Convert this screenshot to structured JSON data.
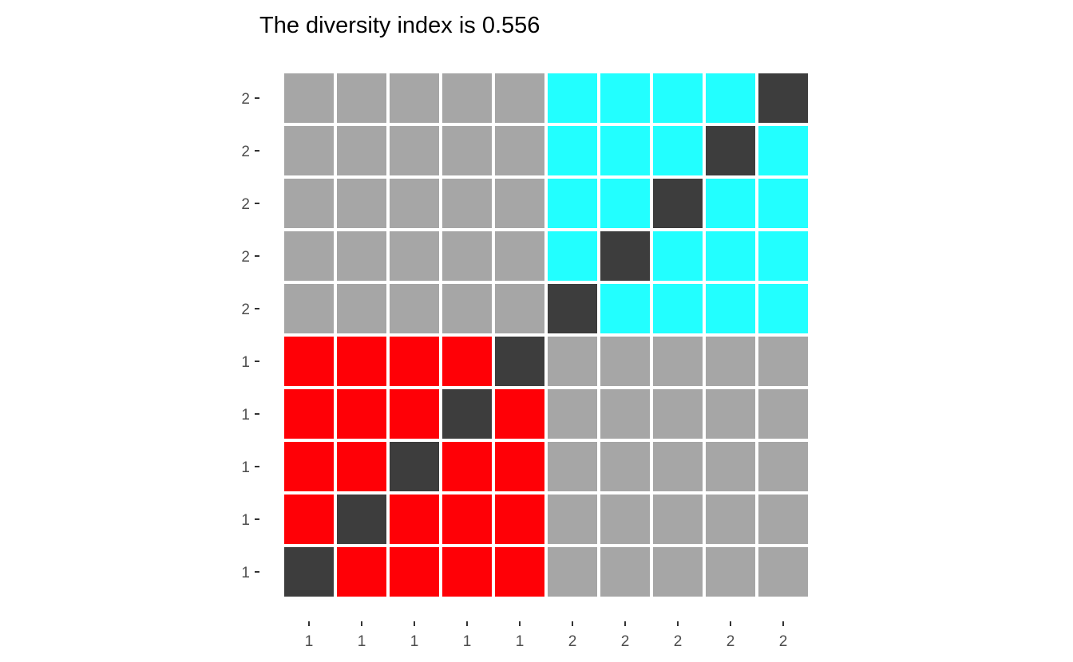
{
  "chart_data": {
    "type": "heatmap",
    "title": "The diversity index is 0.556",
    "x_tick_labels": [
      "1",
      "1",
      "1",
      "1",
      "1",
      "2",
      "2",
      "2",
      "2",
      "2"
    ],
    "y_tick_labels_top_to_bottom": [
      "2",
      "2",
      "2",
      "2",
      "2",
      "1",
      "1",
      "1",
      "1",
      "1"
    ],
    "grid": false,
    "legend": "none",
    "colors": {
      "off_block": "#a6a6a6",
      "group_1": "#ff0006",
      "group_2": "#22ffff",
      "diagonal": "#3d3d3d"
    },
    "cells_top_to_bottom": [
      [
        "off_block",
        "off_block",
        "off_block",
        "off_block",
        "off_block",
        "group_2",
        "group_2",
        "group_2",
        "group_2",
        "diagonal"
      ],
      [
        "off_block",
        "off_block",
        "off_block",
        "off_block",
        "off_block",
        "group_2",
        "group_2",
        "group_2",
        "diagonal",
        "group_2"
      ],
      [
        "off_block",
        "off_block",
        "off_block",
        "off_block",
        "off_block",
        "group_2",
        "group_2",
        "diagonal",
        "group_2",
        "group_2"
      ],
      [
        "off_block",
        "off_block",
        "off_block",
        "off_block",
        "off_block",
        "group_2",
        "diagonal",
        "group_2",
        "group_2",
        "group_2"
      ],
      [
        "off_block",
        "off_block",
        "off_block",
        "off_block",
        "off_block",
        "diagonal",
        "group_2",
        "group_2",
        "group_2",
        "group_2"
      ],
      [
        "group_1",
        "group_1",
        "group_1",
        "group_1",
        "diagonal",
        "off_block",
        "off_block",
        "off_block",
        "off_block",
        "off_block"
      ],
      [
        "group_1",
        "group_1",
        "group_1",
        "diagonal",
        "group_1",
        "off_block",
        "off_block",
        "off_block",
        "off_block",
        "off_block"
      ],
      [
        "group_1",
        "group_1",
        "diagonal",
        "group_1",
        "group_1",
        "off_block",
        "off_block",
        "off_block",
        "off_block",
        "off_block"
      ],
      [
        "group_1",
        "diagonal",
        "group_1",
        "group_1",
        "group_1",
        "off_block",
        "off_block",
        "off_block",
        "off_block",
        "off_block"
      ],
      [
        "diagonal",
        "group_1",
        "group_1",
        "group_1",
        "group_1",
        "off_block",
        "off_block",
        "off_block",
        "off_block",
        "off_block"
      ]
    ]
  }
}
